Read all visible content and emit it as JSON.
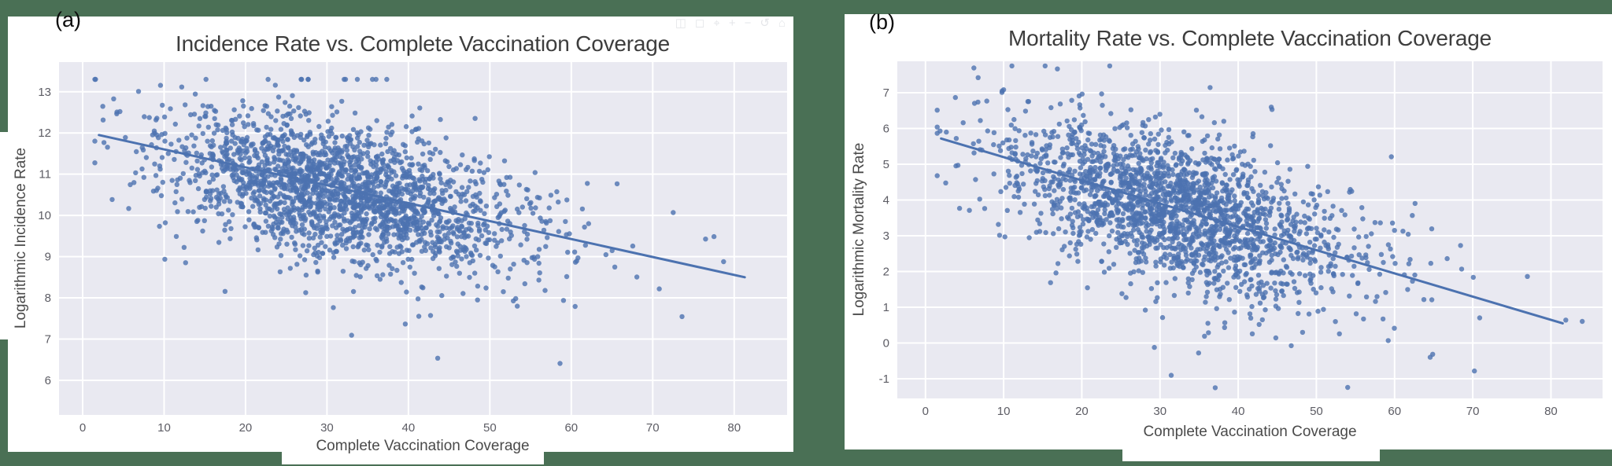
{
  "page": {
    "background_color": "#4a7055",
    "panel_background": "#ffffff"
  },
  "panel_labels": {
    "a": "(a)",
    "b": "(b)"
  },
  "modebar": {
    "icons": [
      {
        "name": "camera-icon",
        "glyph": "◫"
      },
      {
        "name": "zoom-box-icon",
        "glyph": "◻"
      },
      {
        "name": "pan-icon",
        "glyph": "⌖"
      },
      {
        "name": "zoom-in-icon",
        "glyph": "+"
      },
      {
        "name": "zoom-out-icon",
        "glyph": "−"
      },
      {
        "name": "autoscale-icon",
        "glyph": "↺"
      },
      {
        "name": "reset-axes-icon",
        "glyph": "⌂"
      }
    ]
  },
  "chart_data": [
    {
      "type": "scatter",
      "panel_label": "(a)",
      "title": "Incidence Rate vs. Complete Vaccination Coverage",
      "xlabel": "Complete Vaccination Coverage",
      "ylabel": "Logarithmic Incidence Rate",
      "xlim": [
        -2.9,
        86.5
      ],
      "ylim": [
        5.16,
        13.72
      ],
      "xticks": [
        0,
        10,
        20,
        30,
        40,
        50,
        60,
        70,
        80
      ],
      "yticks": [
        6,
        7,
        8,
        9,
        10,
        11,
        12,
        13
      ],
      "grid": true,
      "legend": null,
      "plot_bg_color": "#e9e9f1",
      "grid_color": "#ffffff",
      "point_color": "#4c72b0",
      "point_opacity": 0.8,
      "point_radius": 3.2,
      "line_color": "#4c72b0",
      "line_width": 3,
      "regression_line": {
        "x_start": 2,
        "y_start": 11.95,
        "x_end": 81.3,
        "y_end": 8.5
      },
      "n_points": 2200,
      "seed": 42,
      "distribution": {
        "x_mean": 31.5,
        "x_sd": 10.5,
        "x_min": 1.5,
        "x_max": 84,
        "x_far_prob": 0.015,
        "x_far_base": 55,
        "x_far_sd": 11,
        "intercept": 11.9,
        "slope": -0.042,
        "noise_sd": 0.78,
        "tail_prob": 0.035,
        "tail_sd": 1.9,
        "y_min": 5.9,
        "y_max": 13.3
      }
    },
    {
      "type": "scatter",
      "panel_label": "(b)",
      "title": "Mortality Rate vs. Complete Vaccination Coverage",
      "xlabel": "Complete Vaccination Coverage",
      "ylabel": "Logarithmic Mortality Rate",
      "xlim": [
        -3.6,
        86.6
      ],
      "ylim": [
        -1.55,
        7.88
      ],
      "xticks": [
        0,
        10,
        20,
        30,
        40,
        50,
        60,
        70,
        80
      ],
      "yticks": [
        -1,
        0,
        1,
        2,
        3,
        4,
        5,
        6,
        7
      ],
      "grid": true,
      "legend": null,
      "plot_bg_color": "#e9e9f1",
      "grid_color": "#ffffff",
      "point_color": "#4c72b0",
      "point_opacity": 0.8,
      "point_radius": 3.2,
      "line_color": "#4c72b0",
      "line_width": 3,
      "regression_line": {
        "x_start": 2,
        "y_start": 5.72,
        "x_end": 81.5,
        "y_end": 0.55
      },
      "n_points": 2100,
      "seed": 1337,
      "distribution": {
        "x_mean": 31.5,
        "x_sd": 10.5,
        "x_min": 1.5,
        "x_max": 84,
        "x_far_prob": 0.015,
        "x_far_base": 55,
        "x_far_sd": 11,
        "intercept": 5.75,
        "slope": -0.064,
        "noise_sd": 0.95,
        "tail_prob": 0.05,
        "tail_sd": 1.8,
        "y_min": -1.25,
        "y_max": 7.75
      }
    }
  ]
}
